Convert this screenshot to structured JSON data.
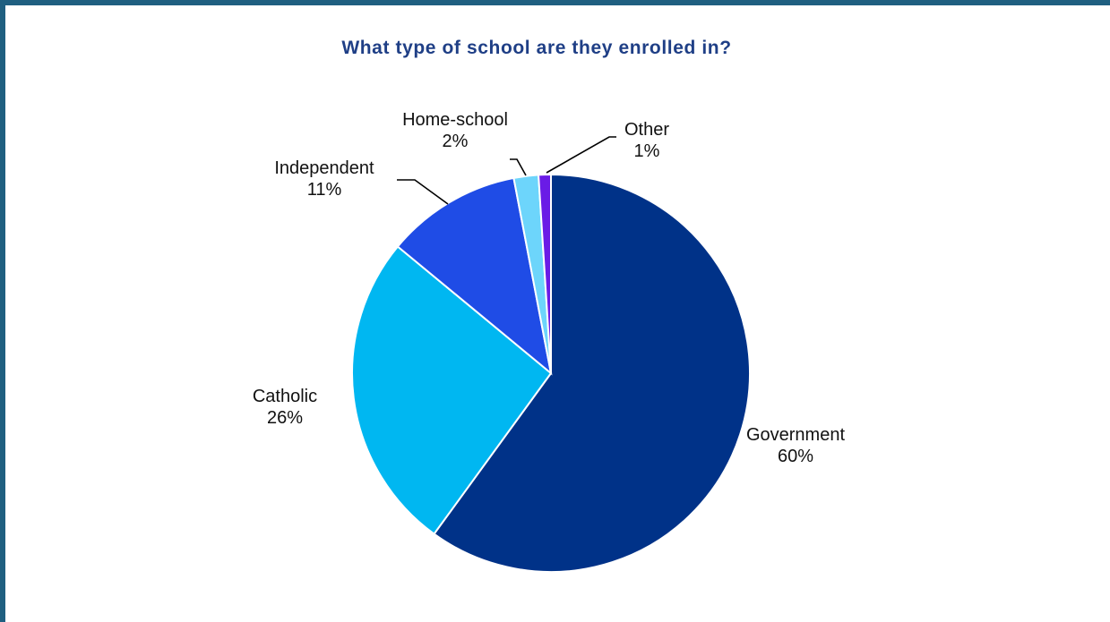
{
  "chart_data": {
    "type": "pie",
    "title": "What type of school are they enrolled in?",
    "slices": [
      {
        "name": "Government",
        "value": 60,
        "label": "60%",
        "color": "#003288"
      },
      {
        "name": "Catholic",
        "value": 26,
        "label": "26%",
        "color": "#00b7f1"
      },
      {
        "name": "Independent",
        "value": 11,
        "label": "11%",
        "color": "#1f4ce6"
      },
      {
        "name": "Home-school",
        "value": 2,
        "label": "2%",
        "color": "#6dd5fb"
      },
      {
        "name": "Other",
        "value": 1,
        "label": "1%",
        "color": "#6a1be6"
      }
    ],
    "legend": "none",
    "data_labels": "outside"
  }
}
